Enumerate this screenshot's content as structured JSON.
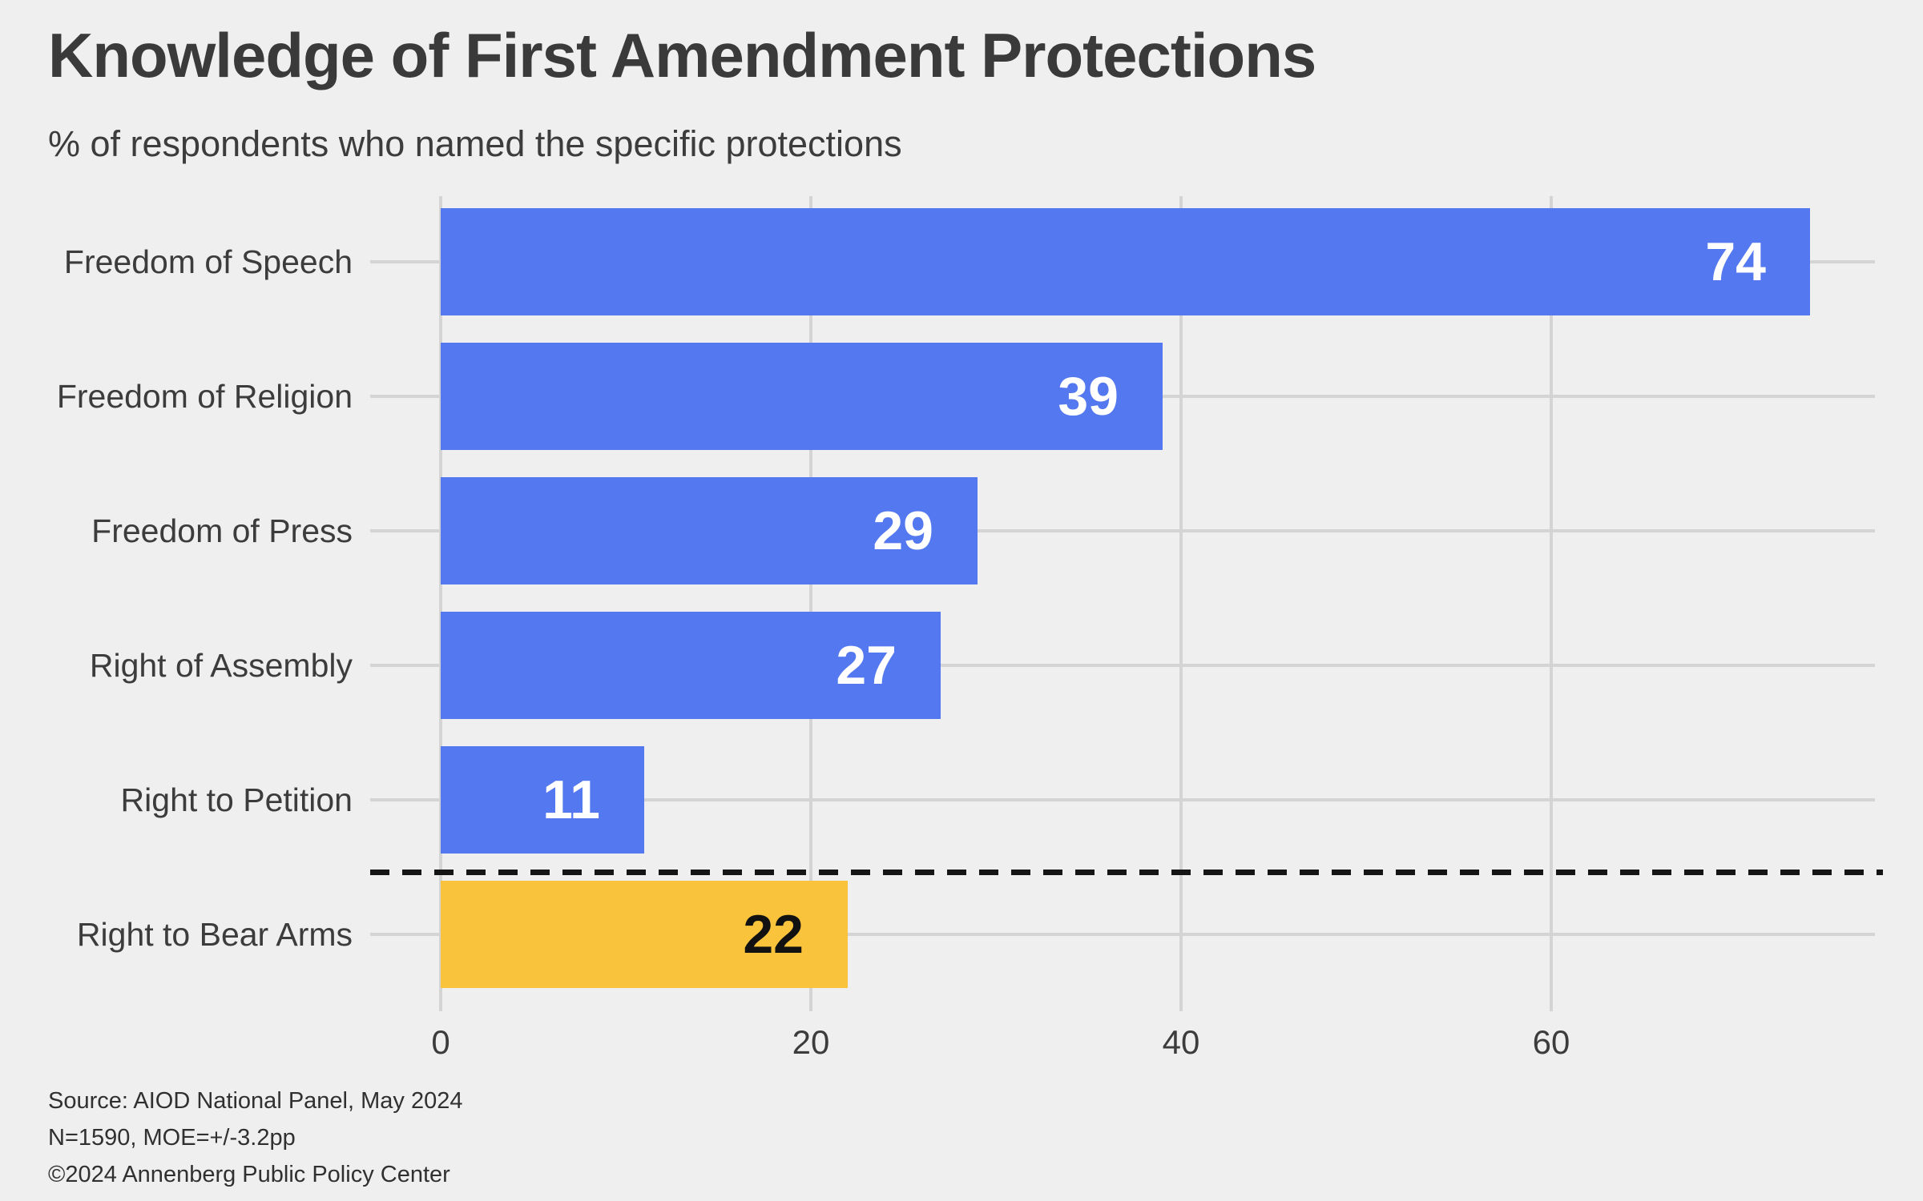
{
  "header": {
    "title": "Knowledge of First Amendment Protections",
    "subtitle": "% of respondents who named the specific protections"
  },
  "chart_data": {
    "type": "bar",
    "orientation": "horizontal",
    "title": "Knowledge of First Amendment Protections",
    "subtitle": "% of respondents who named the specific protections",
    "categories": [
      "Freedom of Speech",
      "Freedom of Religion",
      "Freedom of Press",
      "Right of Assembly",
      "Right to Petition",
      "Right to Bear Arms"
    ],
    "values": [
      74,
      39,
      29,
      27,
      11,
      22
    ],
    "bar_color_keys": [
      "blue",
      "blue",
      "blue",
      "blue",
      "blue",
      "yellow"
    ],
    "x_ticks": [
      "0",
      "20",
      "40",
      "60"
    ],
    "x_tick_values": [
      0,
      20,
      40,
      60
    ],
    "xlim": [
      0,
      77
    ],
    "grid": true,
    "legend": "none",
    "annotations": [
      {
        "type": "dashed-divider",
        "between": [
          "Right to Petition",
          "Right to Bear Arms"
        ],
        "meaning": "separates First Amendment protections from non-First-Amendment item"
      }
    ]
  },
  "footer": {
    "source_lines": [
      "Source: AIOD National Panel, May 2024",
      "N=1590, MOE=+/-3.2pp",
      "©2024 Annenberg Public Policy Center"
    ]
  },
  "colors": {
    "background": "#EFEFEF",
    "bar_blue": "#5478EF",
    "bar_yellow": "#F9C43B",
    "gridline": "#D4D4D4",
    "divider": "#151515",
    "title_text": "#3A3A3A",
    "body_text": "#3C3C3C",
    "source_text": "#303030",
    "value_on_blue": "#FFFFFF",
    "value_on_yellow": "#111111"
  }
}
